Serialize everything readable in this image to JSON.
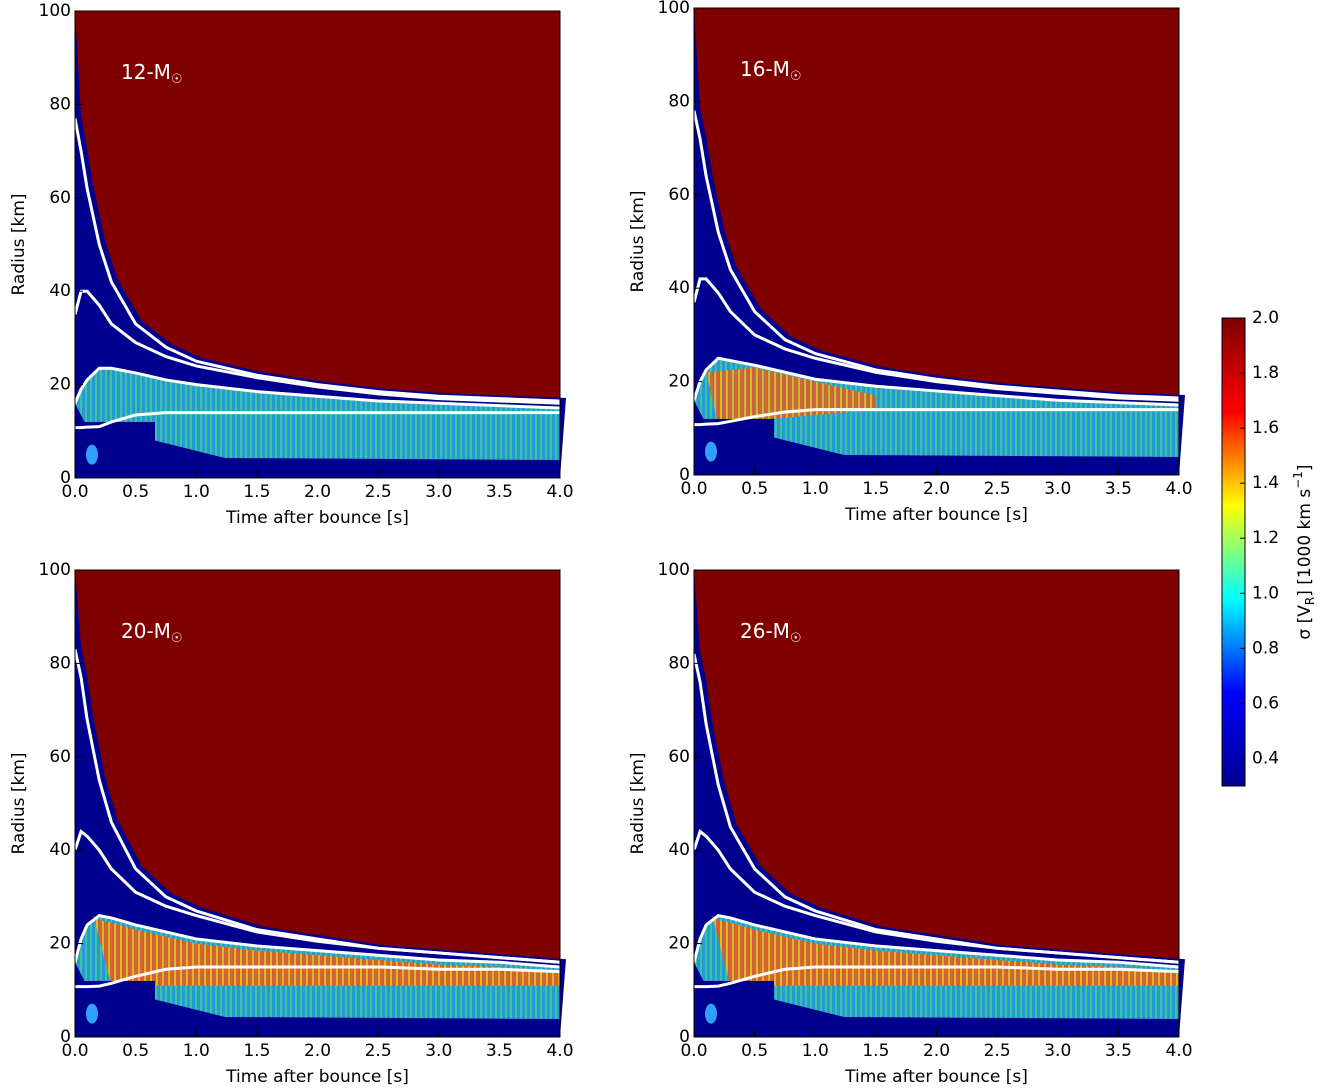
{
  "chart_data": [
    {
      "type": "heatmap",
      "annotation": [
        "12-M",
        "☉"
      ],
      "xlabel": "Time after bounce [s]",
      "ylabel": "Radius [km]",
      "xlim": [
        0,
        4
      ],
      "ylim": [
        0,
        100
      ],
      "xticks": [
        {
          "value": 0,
          "label": "0.0"
        },
        0.5,
        {
          "value": 1,
          "label": "1.0"
        },
        1.5,
        {
          "value": 2,
          "label": "2.0"
        },
        2.5,
        {
          "value": 3,
          "label": "3.0"
        },
        3.5,
        {
          "value": 4,
          "label": "4.0"
        }
      ],
      "yticks": [
        0,
        20,
        40,
        60,
        80,
        100
      ],
      "background_color": "#800000",
      "low_color": "#00008f",
      "line_color": "#ffffff",
      "lines": [
        {
          "x": [
            0,
            0.05,
            0.1,
            0.2,
            0.3,
            0.5,
            0.75,
            1,
            1.5,
            2,
            2.5,
            3,
            3.5,
            4
          ],
          "values": [
            77,
            70,
            62,
            50,
            42,
            33,
            28,
            25,
            22,
            20,
            18.5,
            17.5,
            17,
            16.5
          ]
        },
        {
          "x": [
            0,
            0.05,
            0.1,
            0.2,
            0.3,
            0.5,
            0.75,
            1,
            1.5,
            2,
            2.5,
            3,
            3.5,
            4
          ],
          "values": [
            35,
            40,
            40,
            37,
            33,
            29,
            26,
            24,
            21.5,
            19.5,
            18,
            17,
            16.5,
            16
          ]
        },
        {
          "x": [
            0,
            0.05,
            0.1,
            0.2,
            0.3,
            0.5,
            0.75,
            1,
            1.5,
            2,
            2.5,
            3,
            3.5,
            4
          ],
          "values": [
            16,
            19,
            21,
            23.5,
            23.5,
            22.5,
            21,
            20,
            18.5,
            17.5,
            16.5,
            16,
            15.5,
            15
          ]
        },
        {
          "x": [
            0,
            0.05,
            0.1,
            0.2,
            0.3,
            0.5,
            0.75,
            1,
            1.5,
            2,
            2.5,
            3,
            3.5,
            4
          ],
          "values": [
            10.8,
            10.8,
            10.9,
            11,
            12,
            13.5,
            14,
            14,
            14,
            14,
            14,
            14,
            14,
            14
          ]
        }
      ]
    },
    {
      "type": "heatmap",
      "annotation": [
        "16-M",
        "☉"
      ],
      "xlabel": "Time after bounce [s]",
      "ylabel": "Radius [km]",
      "xlim": [
        0,
        4
      ],
      "ylim": [
        0,
        100
      ],
      "xticks": [
        {
          "value": 0,
          "label": "0.0"
        },
        0.5,
        {
          "value": 1,
          "label": "1.0"
        },
        1.5,
        {
          "value": 2,
          "label": "2.0"
        },
        2.5,
        {
          "value": 3,
          "label": "3.0"
        },
        3.5,
        {
          "value": 4,
          "label": "4.0"
        }
      ],
      "yticks": [
        0,
        20,
        40,
        60,
        80,
        100
      ],
      "background_color": "#800000",
      "low_color": "#00008f",
      "line_color": "#ffffff",
      "lines": [
        {
          "x": [
            0,
            0.05,
            0.1,
            0.2,
            0.3,
            0.5,
            0.75,
            1,
            1.5,
            2,
            2.5,
            3,
            3.5,
            4
          ],
          "values": [
            78,
            72,
            64,
            52,
            44,
            35,
            29,
            26,
            22.5,
            20.5,
            19,
            18,
            17,
            16.5
          ]
        },
        {
          "x": [
            0,
            0.05,
            0.1,
            0.2,
            0.3,
            0.5,
            0.75,
            1,
            1.5,
            2,
            2.5,
            3,
            3.5,
            4
          ],
          "values": [
            37,
            42,
            42,
            39,
            35,
            30,
            27,
            25,
            22,
            20,
            18.5,
            17.5,
            16.5,
            16
          ]
        },
        {
          "x": [
            0,
            0.05,
            0.1,
            0.2,
            0.3,
            0.5,
            0.75,
            1,
            1.5,
            2,
            2.5,
            3,
            3.5,
            4
          ],
          "values": [
            16,
            20,
            22.5,
            25,
            24.5,
            23.5,
            22,
            20.5,
            19,
            18,
            17,
            16,
            15.5,
            15
          ]
        },
        {
          "x": [
            0,
            0.05,
            0.1,
            0.2,
            0.3,
            0.5,
            0.75,
            1,
            1.5,
            2,
            2.5,
            3,
            3.5,
            4
          ],
          "values": [
            10.8,
            10.8,
            10.9,
            11,
            11.5,
            12.5,
            13.5,
            14,
            14,
            14,
            14,
            14,
            14,
            14
          ]
        }
      ]
    },
    {
      "type": "heatmap",
      "annotation": [
        "20-M",
        "☉"
      ],
      "xlabel": "Time after bounce [s]",
      "ylabel": "Radius [km]",
      "xlim": [
        0,
        4
      ],
      "ylim": [
        0,
        100
      ],
      "xticks": [
        {
          "value": 0,
          "label": "0.0"
        },
        0.5,
        {
          "value": 1,
          "label": "1.0"
        },
        1.5,
        {
          "value": 2,
          "label": "2.0"
        },
        2.5,
        {
          "value": 3,
          "label": "3.0"
        },
        3.5,
        {
          "value": 4,
          "label": "4.0"
        }
      ],
      "yticks": [
        0,
        20,
        40,
        60,
        80,
        100
      ],
      "background_color": "#800000",
      "low_color": "#00008f",
      "line_color": "#ffffff",
      "lines": [
        {
          "x": [
            0,
            0.05,
            0.1,
            0.2,
            0.3,
            0.5,
            0.75,
            1,
            1.5,
            2,
            2.5,
            3,
            3.5,
            4
          ],
          "values": [
            83,
            77,
            68,
            55,
            46,
            36,
            30,
            27,
            23,
            21,
            19,
            18,
            17,
            16
          ]
        },
        {
          "x": [
            0,
            0.05,
            0.1,
            0.2,
            0.3,
            0.5,
            0.75,
            1,
            1.5,
            2,
            2.5,
            3,
            3.5,
            4
          ],
          "values": [
            40,
            44,
            43,
            40,
            36,
            31,
            28,
            26,
            22.5,
            20.5,
            19,
            18,
            17,
            16
          ]
        },
        {
          "x": [
            0,
            0.05,
            0.1,
            0.2,
            0.3,
            0.5,
            0.75,
            1,
            1.5,
            2,
            2.5,
            3,
            3.5,
            4
          ],
          "values": [
            16,
            21,
            24,
            26,
            25.5,
            24,
            22.5,
            21,
            19.5,
            18.5,
            17.5,
            16.5,
            16,
            15
          ]
        },
        {
          "x": [
            0,
            0.05,
            0.1,
            0.2,
            0.3,
            0.5,
            0.75,
            1,
            1.5,
            2,
            2.5,
            3,
            3.5,
            4
          ],
          "values": [
            10.8,
            10.8,
            10.8,
            10.9,
            11.5,
            13,
            14.5,
            15,
            15,
            15,
            15,
            14.5,
            14.5,
            14
          ]
        }
      ]
    },
    {
      "type": "heatmap",
      "annotation": [
        "26-M",
        "☉"
      ],
      "xlabel": "Time after bounce [s]",
      "ylabel": "Radius [km]",
      "xlim": [
        0,
        4
      ],
      "ylim": [
        0,
        100
      ],
      "xticks": [
        {
          "value": 0,
          "label": "0.0"
        },
        0.5,
        {
          "value": 1,
          "label": "1.0"
        },
        1.5,
        {
          "value": 2,
          "label": "2.0"
        },
        2.5,
        {
          "value": 3,
          "label": "3.0"
        },
        3.5,
        {
          "value": 4,
          "label": "4.0"
        }
      ],
      "yticks": [
        0,
        20,
        40,
        60,
        80,
        100
      ],
      "background_color": "#800000",
      "low_color": "#00008f",
      "line_color": "#ffffff",
      "lines": [
        {
          "x": [
            0,
            0.05,
            0.1,
            0.2,
            0.3,
            0.5,
            0.75,
            1,
            1.5,
            2,
            2.5,
            3,
            3.5,
            4
          ],
          "values": [
            82,
            76,
            67,
            54,
            45,
            36,
            30,
            27,
            23,
            21,
            19,
            18,
            17,
            16
          ]
        },
        {
          "x": [
            0,
            0.05,
            0.1,
            0.2,
            0.3,
            0.5,
            0.75,
            1,
            1.5,
            2,
            2.5,
            3,
            3.5,
            4
          ],
          "values": [
            40,
            44,
            43,
            40,
            36,
            31,
            28,
            26,
            22.5,
            20.5,
            19,
            18,
            17,
            16
          ]
        },
        {
          "x": [
            0,
            0.05,
            0.1,
            0.2,
            0.3,
            0.5,
            0.75,
            1,
            1.5,
            2,
            2.5,
            3,
            3.5,
            4
          ],
          "values": [
            16,
            21,
            24,
            26,
            25.5,
            24,
            22.5,
            21,
            19.5,
            18.5,
            17.5,
            16.5,
            16,
            15
          ]
        },
        {
          "x": [
            0,
            0.05,
            0.1,
            0.2,
            0.3,
            0.5,
            0.75,
            1,
            1.5,
            2,
            2.5,
            3,
            3.5,
            4
          ],
          "values": [
            10.8,
            10.8,
            10.8,
            10.9,
            11.5,
            13,
            14.5,
            15,
            15,
            15,
            15,
            14.5,
            14.5,
            14
          ]
        }
      ]
    }
  ],
  "colorbar": {
    "label": [
      "σ [V",
      "R",
      "] [1000 km s",
      "−1",
      "]"
    ],
    "clim": [
      0.3,
      2.0
    ],
    "ticks": [
      0.4,
      0.6,
      0.8,
      {
        "value": 1,
        "label": "1.0"
      },
      1.2,
      1.4,
      1.6,
      1.8,
      {
        "value": 2,
        "label": "2.0"
      }
    ],
    "colors": [
      "#00008f",
      "#0000ff",
      "#00ffff",
      "#ffff00",
      "#ff0000",
      "#800000"
    ]
  }
}
